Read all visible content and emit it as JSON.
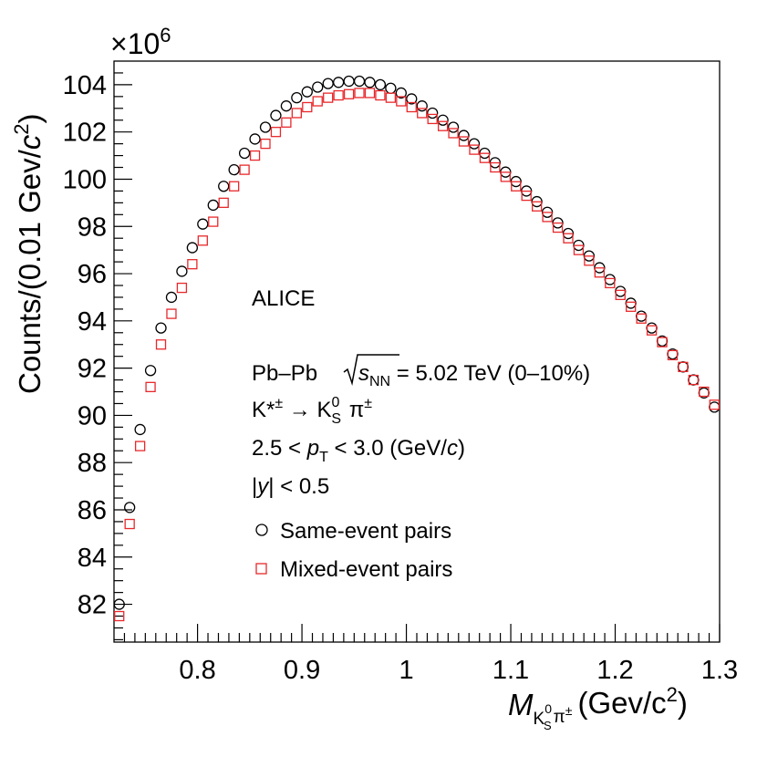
{
  "chart_data": {
    "type": "scatter",
    "title": "",
    "xlabel": "M(K0S π±) (Gev/c2)",
    "xlabel_parts": {
      "main": "M",
      "sub1": "K",
      "sub2": "S",
      "sup": "0",
      "sub_pi": "π",
      "sup_pi": "±",
      "units": "(Gev/c",
      "units_exp": "2",
      "units_close": ")"
    },
    "ylabel": "Counts/(0.01 Gev/c2)",
    "ylabel_parts": {
      "main": "Counts/(0.01 Gev/",
      "c": "c",
      "exp": "2",
      "close": ")"
    },
    "y_multiplier": "×10",
    "y_multiplier_exp": "6",
    "xlim": [
      0.72,
      1.3
    ],
    "ylim": [
      80.4,
      105.0
    ],
    "x_ticks": [
      0.8,
      0.9,
      1.0,
      1.1,
      1.2,
      1.3
    ],
    "x_tick_labels": [
      "0.8",
      "0.9",
      "1",
      "1.1",
      "1.2",
      "1.3"
    ],
    "y_ticks": [
      82,
      84,
      86,
      88,
      90,
      92,
      94,
      96,
      98,
      100,
      102,
      104
    ],
    "y_tick_labels": [
      "82",
      "84",
      "86",
      "88",
      "90",
      "92",
      "94",
      "96",
      "98",
      "100",
      "102",
      "104"
    ],
    "grid": false,
    "legend_position": "lower-center",
    "series": [
      {
        "name": "Same-event pairs",
        "marker": "open-circle",
        "color": "#000000",
        "x": [
          0.725,
          0.735,
          0.745,
          0.755,
          0.765,
          0.775,
          0.785,
          0.795,
          0.805,
          0.815,
          0.825,
          0.835,
          0.845,
          0.855,
          0.865,
          0.875,
          0.885,
          0.895,
          0.905,
          0.915,
          0.925,
          0.935,
          0.945,
          0.955,
          0.965,
          0.975,
          0.985,
          0.995,
          1.005,
          1.015,
          1.025,
          1.035,
          1.045,
          1.055,
          1.065,
          1.075,
          1.085,
          1.095,
          1.105,
          1.115,
          1.125,
          1.135,
          1.145,
          1.155,
          1.165,
          1.175,
          1.185,
          1.195,
          1.205,
          1.215,
          1.225,
          1.235,
          1.245,
          1.255,
          1.265,
          1.275,
          1.285,
          1.295
        ],
        "values": [
          82.0,
          86.1,
          89.4,
          91.9,
          93.7,
          95.0,
          96.1,
          97.1,
          98.1,
          98.9,
          99.7,
          100.4,
          101.1,
          101.7,
          102.2,
          102.7,
          103.1,
          103.45,
          103.7,
          103.9,
          104.05,
          104.1,
          104.15,
          104.15,
          104.1,
          104.0,
          103.85,
          103.65,
          103.4,
          103.1,
          102.8,
          102.5,
          102.2,
          101.85,
          101.5,
          101.1,
          100.7,
          100.3,
          99.9,
          99.5,
          99.05,
          98.6,
          98.15,
          97.7,
          97.2,
          96.75,
          96.25,
          95.75,
          95.25,
          94.75,
          94.2,
          93.7,
          93.15,
          92.6,
          92.05,
          91.5,
          90.95,
          90.35
        ]
      },
      {
        "name": "Mixed-event pairs",
        "marker": "open-square",
        "color": "#e8282b",
        "x": [
          0.725,
          0.735,
          0.745,
          0.755,
          0.765,
          0.775,
          0.785,
          0.795,
          0.805,
          0.815,
          0.825,
          0.835,
          0.845,
          0.855,
          0.865,
          0.875,
          0.885,
          0.895,
          0.905,
          0.915,
          0.925,
          0.935,
          0.945,
          0.955,
          0.965,
          0.975,
          0.985,
          0.995,
          1.005,
          1.015,
          1.025,
          1.035,
          1.045,
          1.055,
          1.065,
          1.075,
          1.085,
          1.095,
          1.105,
          1.115,
          1.125,
          1.135,
          1.145,
          1.155,
          1.165,
          1.175,
          1.185,
          1.195,
          1.205,
          1.215,
          1.225,
          1.235,
          1.245,
          1.255,
          1.265,
          1.275,
          1.285,
          1.295
        ],
        "values": [
          81.5,
          85.4,
          88.7,
          91.2,
          93.0,
          94.3,
          95.4,
          96.4,
          97.4,
          98.2,
          99.0,
          99.7,
          100.4,
          101.0,
          101.5,
          102.0,
          102.4,
          102.8,
          103.05,
          103.3,
          103.45,
          103.55,
          103.6,
          103.65,
          103.65,
          103.55,
          103.45,
          103.3,
          103.05,
          102.8,
          102.55,
          102.25,
          101.95,
          101.6,
          101.25,
          100.9,
          100.5,
          100.1,
          99.7,
          99.3,
          98.85,
          98.4,
          97.95,
          97.5,
          97.0,
          96.55,
          96.05,
          95.6,
          95.1,
          94.6,
          94.1,
          93.6,
          93.1,
          92.55,
          92.05,
          91.5,
          91.0,
          90.45
        ]
      }
    ]
  },
  "annotations": {
    "experiment": "ALICE",
    "system_prefix": "Pb–Pb ",
    "s_symbol": "s",
    "s_sub": "NN",
    "energy": " = 5.02 TeV (0–10%)",
    "decay_kstar": "K*",
    "decay_kstar_sup": "±",
    "decay_arrow": " → K",
    "decay_k_sup": "0",
    "decay_k_sub": "S",
    "decay_pi": " π",
    "decay_pi_sup": "±",
    "pt_prefix": "2.5 < ",
    "pt_p": "p",
    "pt_sub": "T",
    "pt_suffix": " < 3.0 (GeV/",
    "pt_c": "c",
    "pt_close": ")",
    "rap_open": "|",
    "rap_y": "y",
    "rap_rest": "| < 0.5"
  }
}
